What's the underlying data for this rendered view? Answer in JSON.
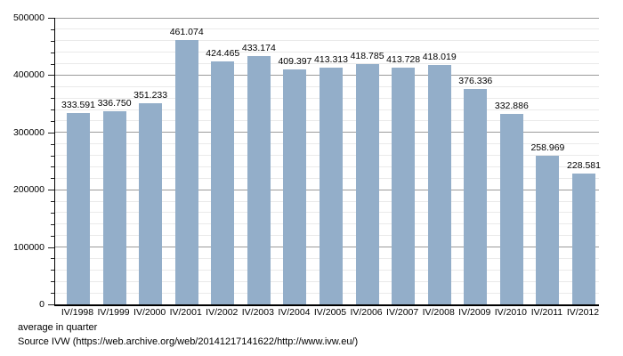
{
  "chart_data": {
    "type": "bar",
    "title": "",
    "xlabel": "",
    "ylabel": "",
    "categories": [
      "IV/1998",
      "IV/1999",
      "IV/2000",
      "IV/2001",
      "IV/2002",
      "IV/2003",
      "IV/2004",
      "IV/2005",
      "IV/2006",
      "IV/2007",
      "IV/2008",
      "IV/2009",
      "IV/2010",
      "IV/2011",
      "IV/2012"
    ],
    "values": [
      333591,
      336750,
      351233,
      461074,
      424465,
      433174,
      409397,
      413313,
      418785,
      413728,
      418019,
      376336,
      332886,
      258969,
      228581
    ],
    "value_labels": [
      "333.591",
      "336.750",
      "351.233",
      "461.074",
      "424.465",
      "433.174",
      "409.397",
      "413.313",
      "418.785",
      "413.728",
      "418.019",
      "376.336",
      "332.886",
      "258.969",
      "228.581"
    ],
    "ylim": [
      0,
      500000
    ],
    "ytick_major": 100000,
    "ytick_minor": 20000,
    "ytick_labels": [
      "0",
      "100000",
      "200000",
      "300000",
      "400000",
      "500000"
    ],
    "grid": "horizontal",
    "legend": "none",
    "bar_color": "#93aec9",
    "major_grid_color": "#9b9b9b",
    "minor_grid_color": "#eaeaea"
  },
  "footer": {
    "line1": "average in quarter",
    "line2": "Source IVW (https://web.archive.org/web/20141217141622/http://www.ivw.eu/)"
  }
}
